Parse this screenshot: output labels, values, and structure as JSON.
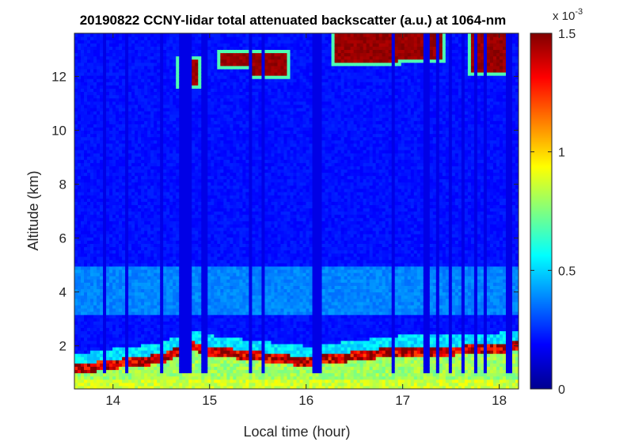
{
  "chart_data": {
    "type": "heatmap",
    "title": "20190822 CCNY-lidar total attenuated backscatter (a.u.) at 1064-nm",
    "xlabel": "Local time (hour)",
    "ylabel": "Altitude (km)",
    "xlim": [
      13.6,
      18.2
    ],
    "ylim": [
      0.4,
      13.6
    ],
    "xticks": [
      "14",
      "15",
      "16",
      "17",
      "18"
    ],
    "yticks": [
      "2",
      "4",
      "6",
      "8",
      "10",
      "12"
    ],
    "colorbar": {
      "min": 0,
      "max": 1.5,
      "ticks": [
        "0",
        "0.5",
        "1",
        "1.5"
      ],
      "exponent_base": "x 10",
      "exponent_power": "-3",
      "colormap": "jet"
    },
    "colors": {
      "low": "#00008f",
      "mid_low": "#0050ff",
      "mid": "#00ffff",
      "mid_high": "#ffff00",
      "high": "#ff0000",
      "max": "#800000"
    },
    "features": {
      "boundary_layer_top_km": [
        {
          "t": 13.6,
          "z": 1.3
        },
        {
          "t": 14.0,
          "z": 1.5
        },
        {
          "t": 14.5,
          "z": 1.7
        },
        {
          "t": 14.8,
          "z": 2.2
        },
        {
          "t": 15.0,
          "z": 2.0
        },
        {
          "t": 15.5,
          "z": 1.8
        },
        {
          "t": 16.0,
          "z": 1.6
        },
        {
          "t": 16.5,
          "z": 1.8
        },
        {
          "t": 17.0,
          "z": 2.0
        },
        {
          "t": 17.5,
          "z": 2.0
        },
        {
          "t": 18.0,
          "z": 2.1
        },
        {
          "t": 18.2,
          "z": 2.2
        }
      ],
      "residual_layer_km": [
        3.2,
        5.0
      ],
      "cirrus_patches": [
        {
          "t0": 14.7,
          "t1": 14.88,
          "z0": 11.7,
          "z1": 12.6
        },
        {
          "t0": 15.1,
          "t1": 15.42,
          "z0": 12.4,
          "z1": 12.9
        },
        {
          "t0": 15.45,
          "t1": 15.8,
          "z0": 12.1,
          "z1": 12.9
        },
        {
          "t0": 16.28,
          "t1": 16.95,
          "z0": 12.5,
          "z1": 13.6
        },
        {
          "t0": 16.95,
          "t1": 17.4,
          "z0": 12.6,
          "z1": 13.6
        },
        {
          "t0": 17.7,
          "t1": 18.1,
          "z0": 12.2,
          "z1": 13.6
        }
      ],
      "dropouts_hours": [
        13.9,
        14.15,
        14.5,
        14.72,
        14.78,
        14.95,
        15.42,
        15.56,
        16.1,
        16.13,
        16.9,
        17.25,
        17.35,
        17.5,
        17.62,
        17.75,
        17.85,
        18.1
      ]
    }
  }
}
